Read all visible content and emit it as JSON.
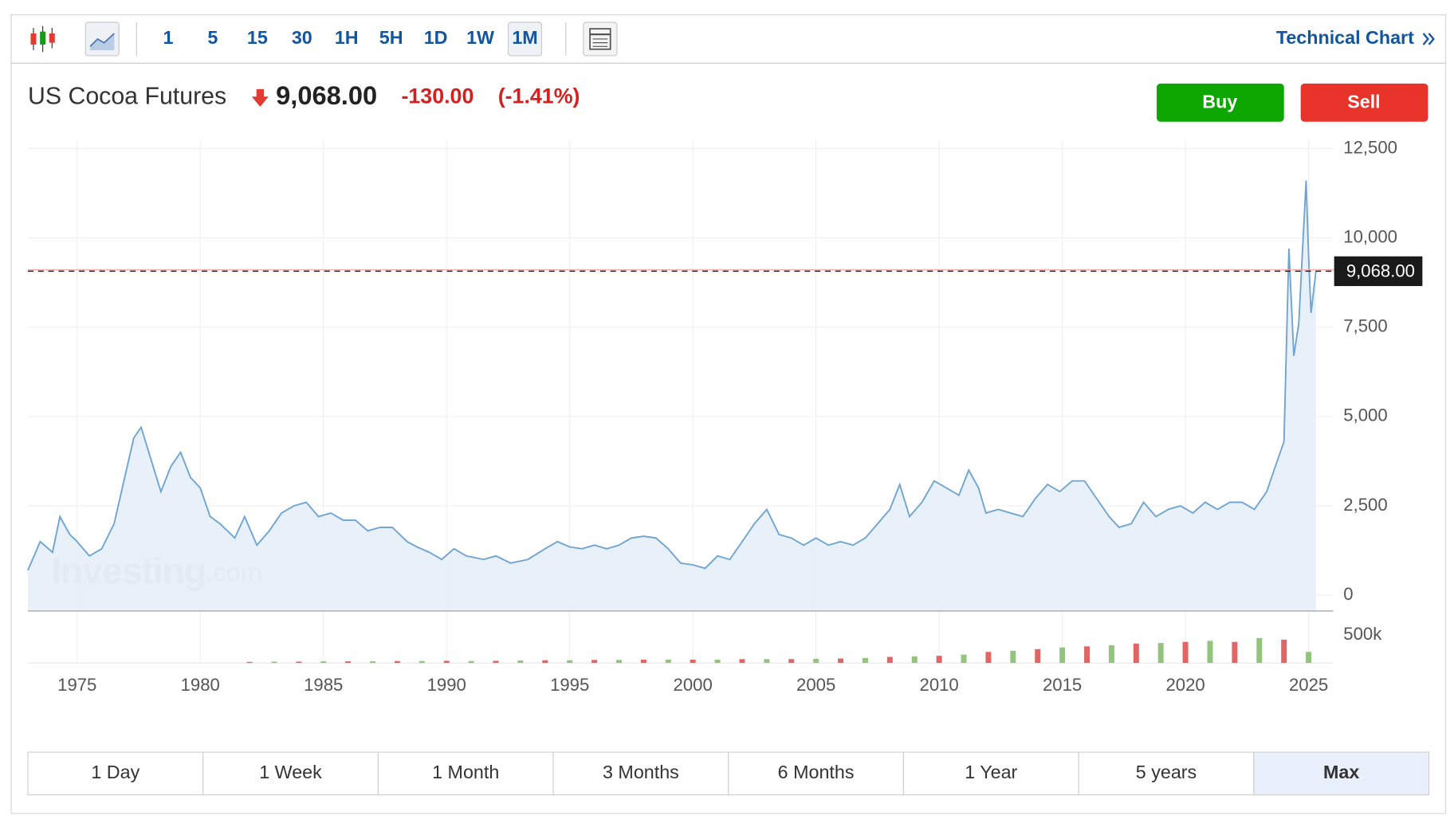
{
  "toolbar": {
    "intervals": [
      "1",
      "5",
      "15",
      "30",
      "1H",
      "5H",
      "1D",
      "1W",
      "1M"
    ],
    "active_interval": 8,
    "technical_chart": "Technical Chart"
  },
  "header": {
    "name": "US Cocoa Futures",
    "price": "9,068.00",
    "change": "-130.00",
    "change_pct": "(-1.41%)"
  },
  "buttons": {
    "buy": "Buy",
    "sell": "Sell"
  },
  "watermark": {
    "brand": "Investing",
    "suffix": ".com"
  },
  "ranges": {
    "items": [
      "1 Day",
      "1 Week",
      "1 Month",
      "3 Months",
      "6 Months",
      "1 Year",
      "5 years",
      "Max"
    ],
    "active": 7
  },
  "chart_data": {
    "type": "line",
    "x": [
      1973.0,
      1973.5,
      1974.0,
      1974.3,
      1974.7,
      1975.0,
      1975.5,
      1976.0,
      1976.5,
      1977.0,
      1977.3,
      1977.6,
      1978.0,
      1978.4,
      1978.8,
      1979.2,
      1979.6,
      1980.0,
      1980.4,
      1980.8,
      1981.4,
      1981.8,
      1982.3,
      1982.8,
      1983.3,
      1983.8,
      1984.3,
      1984.8,
      1985.3,
      1985.8,
      1986.3,
      1986.8,
      1987.3,
      1987.8,
      1988.4,
      1988.8,
      1989.3,
      1989.8,
      1990.3,
      1990.8,
      1991.5,
      1992.0,
      1992.6,
      1993.3,
      1994.0,
      1994.5,
      1995.0,
      1995.5,
      1996.0,
      1996.5,
      1997.0,
      1997.5,
      1998.0,
      1998.5,
      1999.0,
      1999.5,
      2000.0,
      2000.5,
      2001.0,
      2001.5,
      2002.0,
      2002.5,
      2003.0,
      2003.5,
      2004.0,
      2004.5,
      2005.0,
      2005.5,
      2006.0,
      2006.5,
      2007.0,
      2007.5,
      2008.0,
      2008.4,
      2008.8,
      2009.3,
      2009.8,
      2010.3,
      2010.8,
      2011.2,
      2011.6,
      2011.9,
      2012.4,
      2012.9,
      2013.4,
      2013.9,
      2014.4,
      2014.9,
      2015.4,
      2015.9,
      2016.4,
      2016.9,
      2017.3,
      2017.8,
      2018.3,
      2018.8,
      2019.3,
      2019.8,
      2020.3,
      2020.8,
      2021.3,
      2021.8,
      2022.3,
      2022.8,
      2023.3,
      2023.7,
      2024.0,
      2024.2,
      2024.4,
      2024.6,
      2024.9,
      2025.0,
      2025.1,
      2025.3
    ],
    "values": [
      700,
      1500,
      1200,
      2200,
      1700,
      1500,
      1100,
      1300,
      2000,
      3500,
      4400,
      4700,
      3800,
      2900,
      3600,
      4000,
      3300,
      3000,
      2200,
      2000,
      1600,
      2200,
      1400,
      1800,
      2300,
      2500,
      2600,
      2200,
      2300,
      2100,
      2100,
      1800,
      1900,
      1900,
      1500,
      1350,
      1200,
      1000,
      1300,
      1100,
      1000,
      1100,
      900,
      1000,
      1300,
      1500,
      1350,
      1300,
      1400,
      1300,
      1400,
      1600,
      1650,
      1600,
      1300,
      900,
      850,
      750,
      1100,
      1000,
      1500,
      2000,
      2400,
      1700,
      1600,
      1400,
      1600,
      1400,
      1500,
      1400,
      1600,
      2000,
      2400,
      3100,
      2200,
      2600,
      3200,
      3000,
      2800,
      3500,
      3000,
      2300,
      2400,
      2300,
      2200,
      2700,
      3100,
      2900,
      3200,
      3200,
      2700,
      2200,
      1900,
      2000,
      2600,
      2200,
      2400,
      2500,
      2300,
      2600,
      2400,
      2600,
      2600,
      2400,
      2900,
      3700,
      4300,
      9700,
      6700,
      7600,
      11600,
      9500,
      7900,
      9068
    ],
    "color": "#6fa3d2",
    "xlim": [
      1973,
      2026
    ],
    "xticks": [
      1975,
      1980,
      1985,
      1990,
      1995,
      2000,
      2005,
      2010,
      2015,
      2020,
      2025
    ],
    "ylim": [
      -442,
      12760
    ],
    "yticks": [
      {
        "value": 0,
        "label": "0"
      },
      {
        "value": 2500,
        "label": "2,500"
      },
      {
        "value": 5000,
        "label": "5,000"
      },
      {
        "value": 7500,
        "label": "7,500"
      },
      {
        "value": 10000,
        "label": "10,000"
      },
      {
        "value": 12500,
        "label": "12,500"
      }
    ],
    "grid": true,
    "last_price": {
      "value": 9068,
      "label": "9,068.00"
    },
    "volume": {
      "x": [
        1982,
        1983,
        1984,
        1985,
        1986,
        1987,
        1988,
        1989,
        1990,
        1991,
        1992,
        1993,
        1994,
        1995,
        1996,
        1997,
        1998,
        1999,
        2000,
        2001,
        2002,
        2003,
        2004,
        2005,
        2006,
        2007,
        2008,
        2009,
        2010,
        2011,
        2012,
        2013,
        2014,
        2015,
        2016,
        2017,
        2018,
        2019,
        2020,
        2021,
        2022,
        2023,
        2024,
        2025
      ],
      "values": [
        20000,
        25000,
        25000,
        30000,
        30000,
        30000,
        35000,
        35000,
        40000,
        35000,
        40000,
        45000,
        50000,
        50000,
        55000,
        55000,
        60000,
        60000,
        60000,
        60000,
        70000,
        70000,
        70000,
        75000,
        80000,
        90000,
        110000,
        120000,
        130000,
        150000,
        200000,
        220000,
        250000,
        280000,
        300000,
        320000,
        350000,
        360000,
        380000,
        400000,
        380000,
        450000,
        420000,
        200000
      ],
      "colors": [
        "#e06666",
        "#93c47d",
        "#e06666",
        "#93c47d",
        "#e06666",
        "#93c47d",
        "#e06666",
        "#93c47d",
        "#e06666",
        "#93c47d",
        "#e06666",
        "#93c47d",
        "#e06666",
        "#93c47d",
        "#e06666",
        "#93c47d",
        "#e06666",
        "#93c47d",
        "#e06666",
        "#93c47d",
        "#e06666",
        "#93c47d",
        "#e06666",
        "#93c47d",
        "#e06666",
        "#93c47d",
        "#e06666",
        "#93c47d",
        "#e06666",
        "#93c47d",
        "#e06666",
        "#93c47d",
        "#e06666",
        "#93c47d",
        "#e06666",
        "#93c47d",
        "#e06666",
        "#93c47d",
        "#e06666",
        "#93c47d",
        "#e06666",
        "#93c47d",
        "#e06666",
        "#93c47d"
      ],
      "ylim": [
        0,
        870000
      ],
      "yticks": [
        {
          "value": 500000,
          "label": "500k"
        }
      ]
    }
  }
}
